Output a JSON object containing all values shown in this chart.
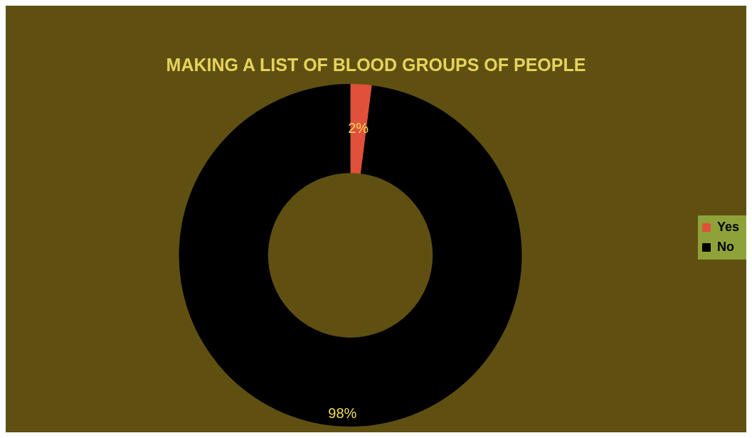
{
  "chart_data": {
    "type": "donut",
    "title": "MAKING A LIST OF BLOOD GROUPS OF PEOPLE",
    "categories": [
      "Yes",
      "No"
    ],
    "values": [
      2,
      98
    ],
    "value_labels": [
      "2%",
      "98%"
    ],
    "colors": [
      "#e0503a",
      "#000000"
    ],
    "legend": "right"
  }
}
